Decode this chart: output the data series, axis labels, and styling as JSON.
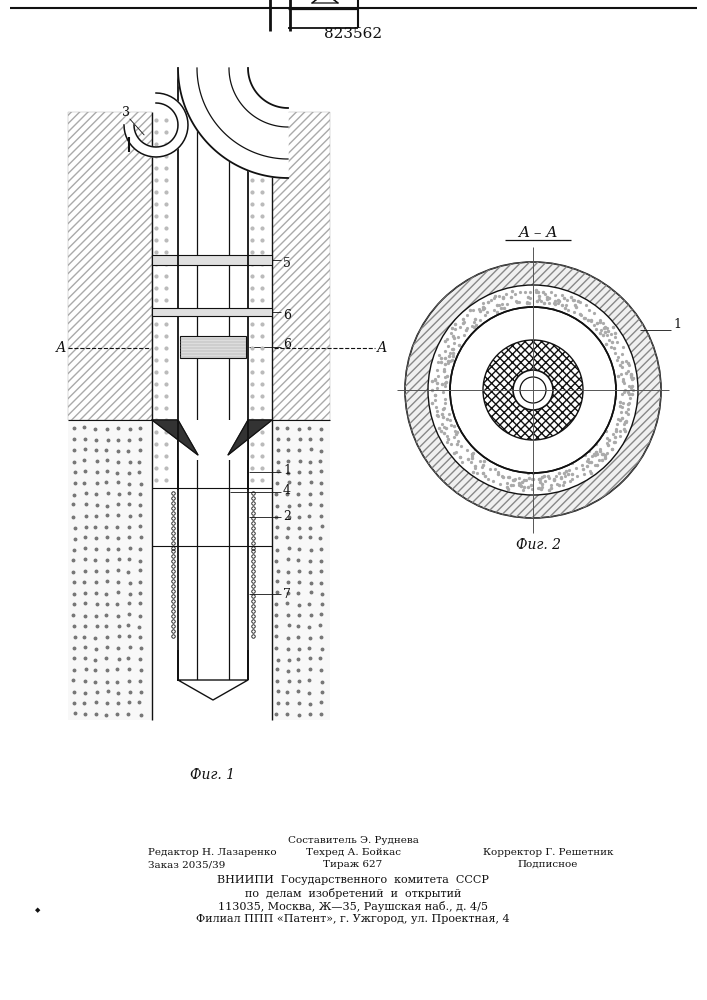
{
  "patent_num": "823562",
  "fig1_caption": "Фиг. 1",
  "fig2_caption": "Фиг. 2",
  "section_aa": "A – A",
  "bg": "#ffffff",
  "lc": "#111111",
  "footer": [
    [
      "Редактор Н. Лазаренко",
      148,
      848,
      "left",
      7.5
    ],
    [
      "Составитель Э. Руднева",
      353,
      836,
      "center",
      7.5
    ],
    [
      "Заказ 2035/39",
      148,
      860,
      "left",
      7.5
    ],
    [
      "Техред А. Бойкас",
      353,
      848,
      "center",
      7.5
    ],
    [
      "Корректор Г. Решетник",
      548,
      848,
      "center",
      7.5
    ],
    [
      "Тираж 627",
      353,
      860,
      "center",
      7.5
    ],
    [
      "Подписное",
      548,
      860,
      "center",
      7.5
    ],
    [
      "ВНИИПИ  Государственного  комитета  СССР",
      353,
      875,
      "center",
      8
    ],
    [
      "по  делам  изобретений  и  открытий",
      353,
      888,
      "center",
      8
    ],
    [
      "113035, Москва, Ж—35, Раушская наб., д. 4/5",
      353,
      901,
      "center",
      8
    ],
    [
      "Филиал ППП «Патент», г. Ужгород, ул. Проектная, 4",
      353,
      914,
      "center",
      8
    ]
  ]
}
